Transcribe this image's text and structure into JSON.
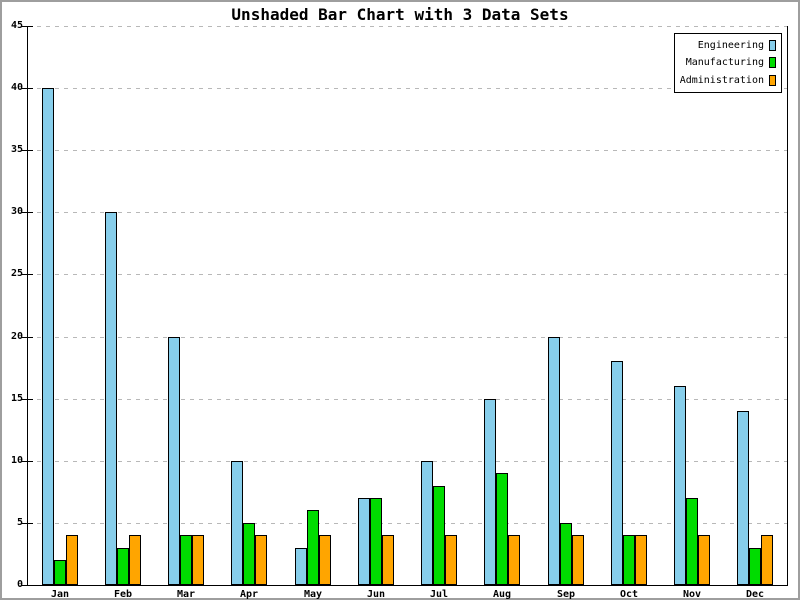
{
  "frame": {
    "border_color": "#9e9e9e",
    "background": "#ffffff"
  },
  "chart_data": {
    "type": "bar",
    "title": "Unshaded Bar Chart with 3 Data Sets",
    "categories": [
      "Jan",
      "Feb",
      "Mar",
      "Apr",
      "May",
      "Jun",
      "Jul",
      "Aug",
      "Sep",
      "Oct",
      "Nov",
      "Dec"
    ],
    "series": [
      {
        "name": "Engineering",
        "color": "#87CEEB",
        "values": [
          40,
          30,
          20,
          10,
          3,
          7,
          10,
          15,
          20,
          18,
          16,
          14
        ]
      },
      {
        "name": "Manufacturing",
        "color": "#00DC00",
        "values": [
          2,
          3,
          4,
          5,
          6,
          7,
          8,
          9,
          5,
          4,
          7,
          3
        ]
      },
      {
        "name": "Administration",
        "color": "#FFA500",
        "values": [
          4,
          4,
          4,
          4,
          4,
          4,
          4,
          4,
          4,
          4,
          4,
          4
        ]
      }
    ],
    "xlabel": "",
    "ylabel": "",
    "ylim": [
      0,
      45
    ],
    "yticks": [
      0,
      5,
      10,
      15,
      20,
      25,
      30,
      35,
      40,
      45
    ],
    "grid": true,
    "gridline_color": "#b8b8b8",
    "axis_color": "#000000",
    "bar_outline_color": "#000000",
    "legend_position": "top-right"
  }
}
